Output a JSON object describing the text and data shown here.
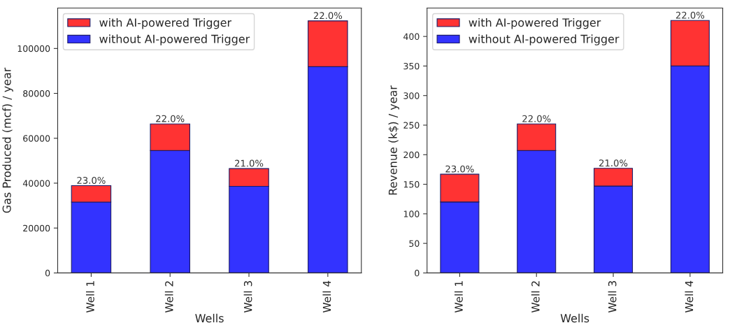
{
  "chart_data": [
    {
      "type": "bar",
      "stacked": true,
      "xlabel": "Wells",
      "ylabel": "Gas Produced (mcf) / year",
      "categories": [
        "Well 1",
        "Well 2",
        "Well 3",
        "Well 4"
      ],
      "series": [
        {
          "name": "without AI-powered Trigger",
          "color": "#3333ff",
          "values": [
            31600,
            54500,
            38600,
            91900
          ]
        },
        {
          "name": "with AI-powered Trigger",
          "color": "#ff3333",
          "values": [
            7300,
            11900,
            7900,
            20400
          ]
        }
      ],
      "annotations": [
        {
          "text": "23.0%",
          "x": "Well 1",
          "y": 38900
        },
        {
          "text": "22.0%",
          "x": "Well 2",
          "y": 66400
        },
        {
          "text": "21.0%",
          "x": "Well 3",
          "y": 46500
        },
        {
          "text": "22.0%",
          "x": "Well 4",
          "y": 112300
        }
      ],
      "ylim": [
        0,
        118000
      ],
      "yticks": [
        0,
        20000,
        40000,
        60000,
        80000,
        100000
      ],
      "legend": "top left",
      "grid": false
    },
    {
      "type": "bar",
      "stacked": true,
      "xlabel": "Wells",
      "ylabel": "Revenue (k$) / year",
      "categories": [
        "Well 1",
        "Well 2",
        "Well 3",
        "Well 4"
      ],
      "series": [
        {
          "name": "without AI-powered Trigger",
          "color": "#3333ff",
          "values": [
            120,
            207,
            147,
            350
          ]
        },
        {
          "name": "with AI-powered Trigger",
          "color": "#ff3333",
          "values": [
            47,
            45,
            30,
            77
          ]
        }
      ],
      "annotations": [
        {
          "text": "23.0%",
          "x": "Well 1",
          "y": 167
        },
        {
          "text": "22.0%",
          "x": "Well 2",
          "y": 252
        },
        {
          "text": "21.0%",
          "x": "Well 3",
          "y": 177
        },
        {
          "text": "22.0%",
          "x": "Well 4",
          "y": 427
        }
      ],
      "ylim": [
        0,
        448
      ],
      "yticks": [
        0,
        50,
        100,
        150,
        200,
        250,
        300,
        350,
        400
      ],
      "legend": "top left",
      "grid": false
    }
  ]
}
